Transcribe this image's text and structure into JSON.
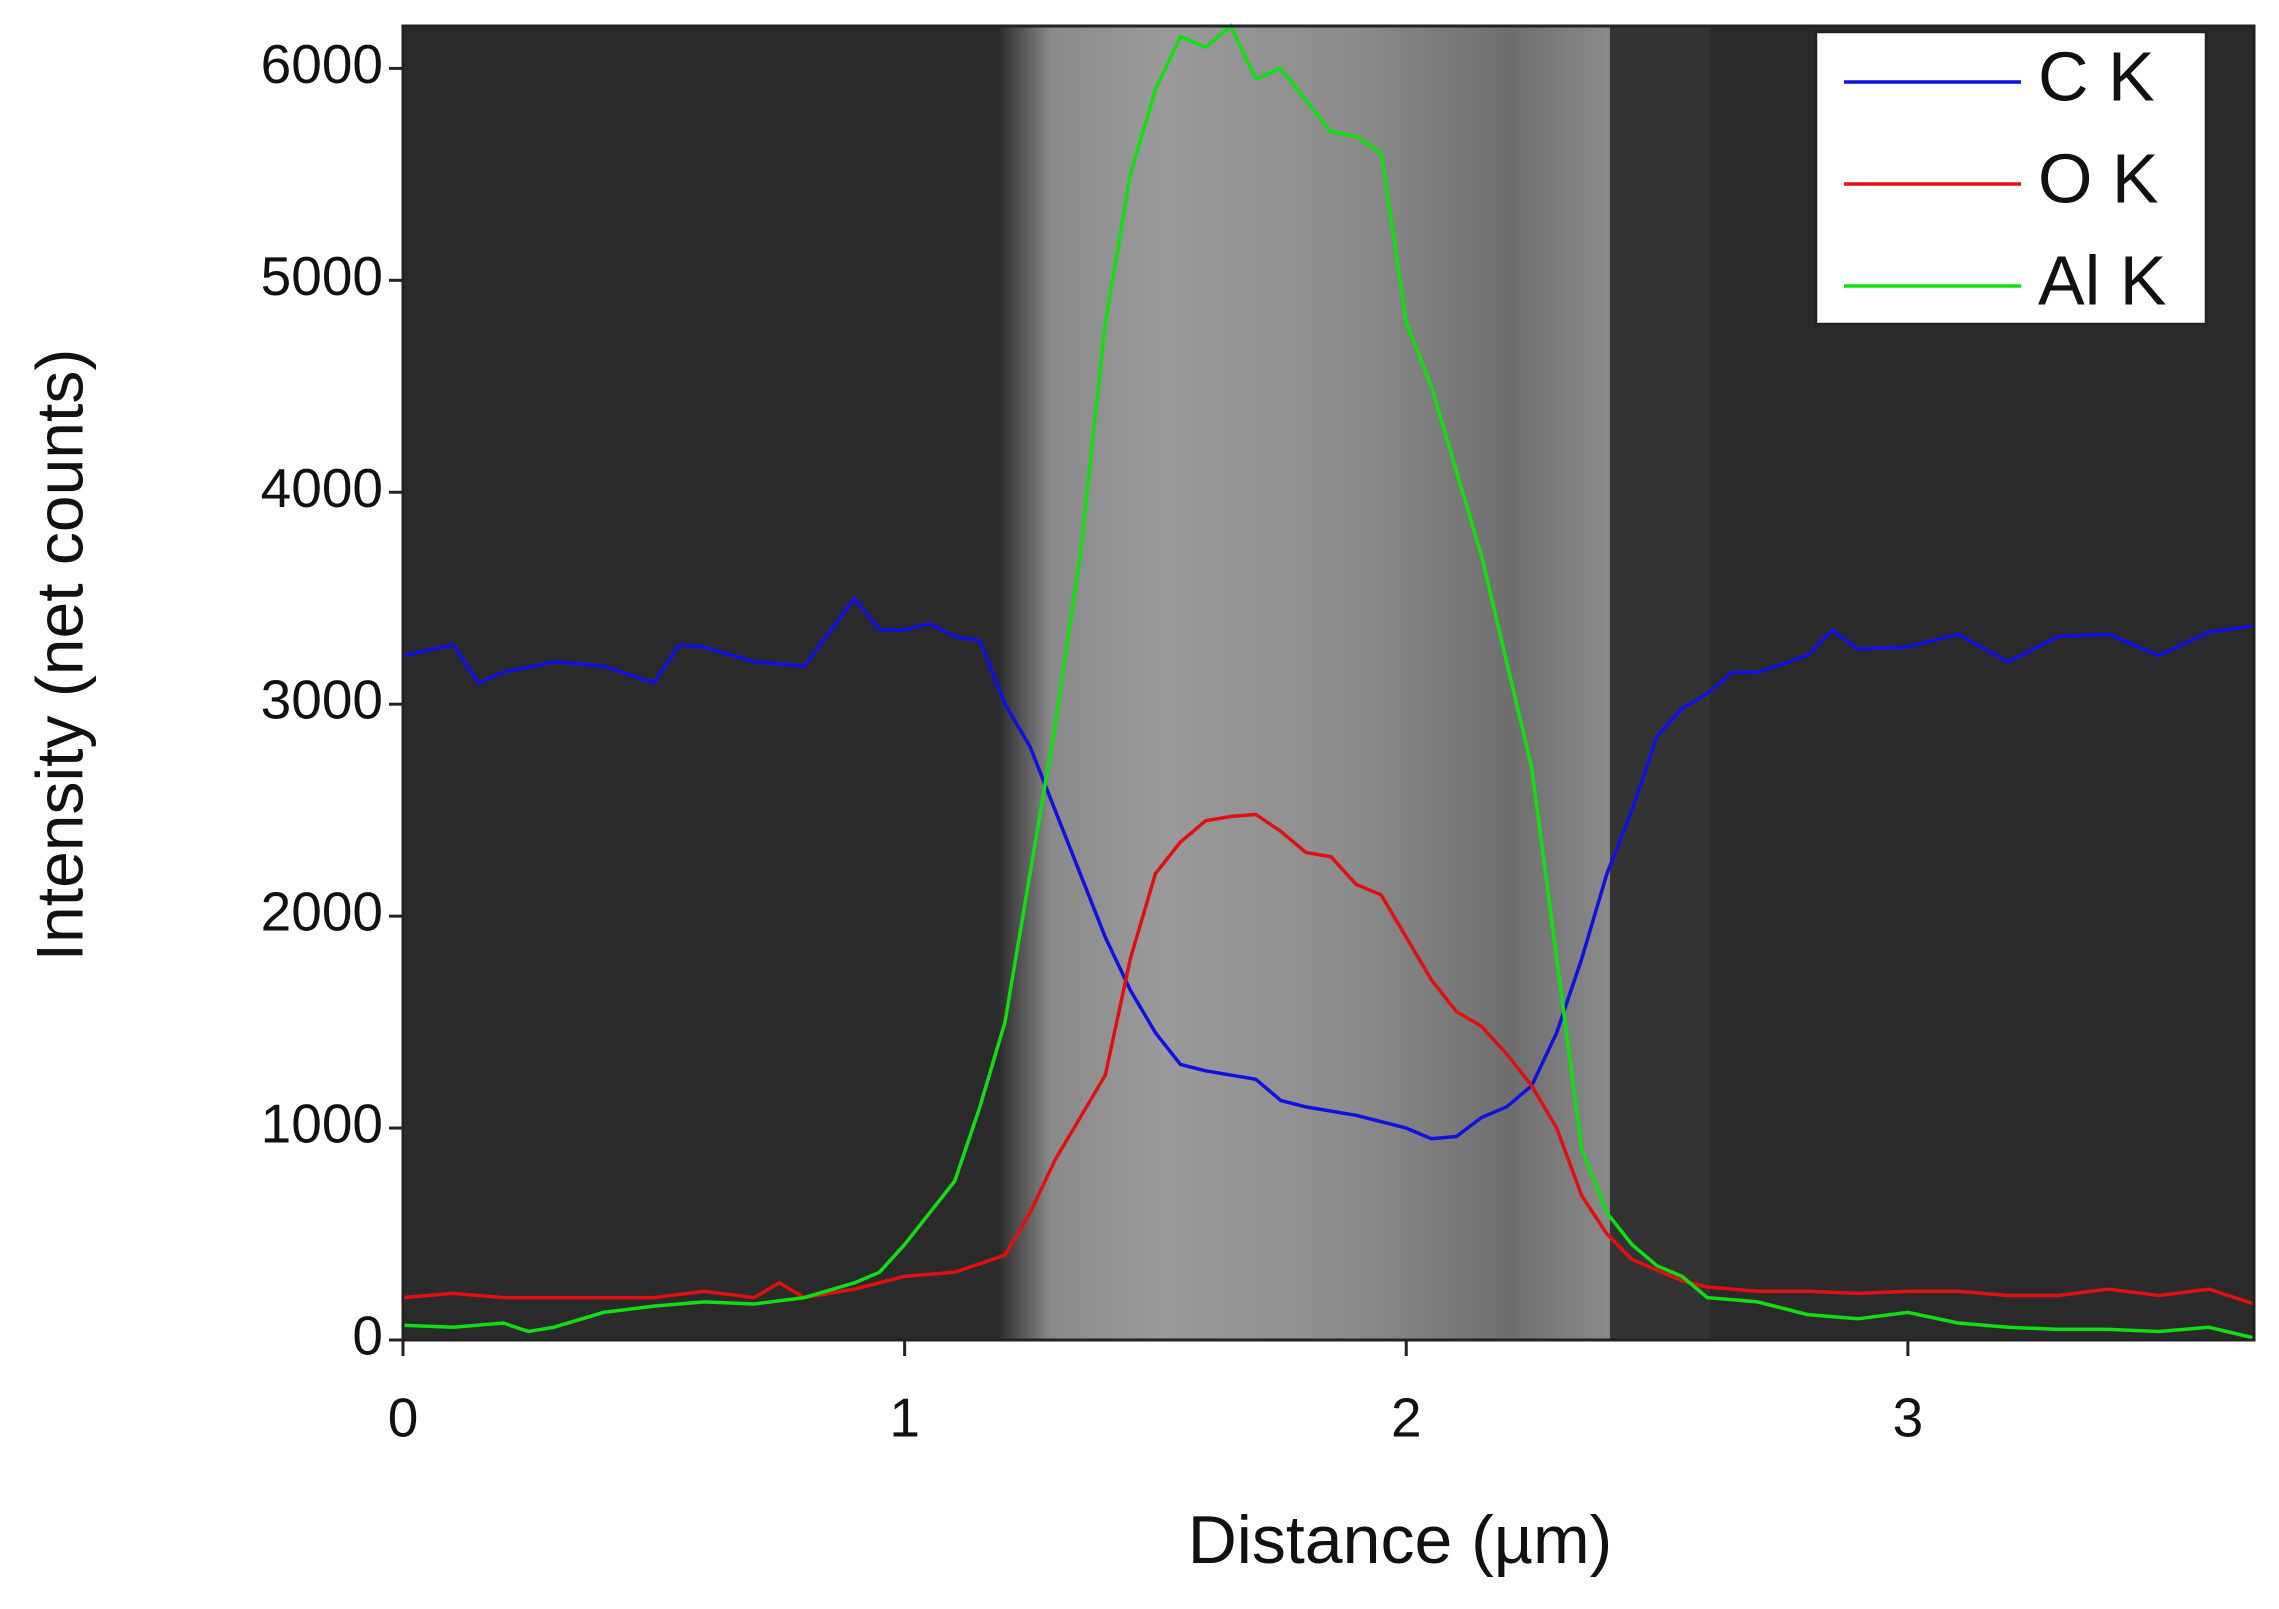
{
  "chart_data": {
    "type": "line",
    "xlabel": "Distance (µm)",
    "ylabel": "Intensity (net counts)",
    "xlim": [
      0,
      3.69
    ],
    "ylim": [
      0,
      6200
    ],
    "xticks": [
      0,
      1,
      2,
      3
    ],
    "yticks": [
      0,
      1000,
      2000,
      3000,
      4000,
      5000,
      6000
    ],
    "legend": "upper right",
    "series": [
      {
        "name": "C K",
        "color": "#1010e0",
        "x": [
          0,
          0.1,
          0.15,
          0.2,
          0.3,
          0.4,
          0.5,
          0.55,
          0.6,
          0.7,
          0.8,
          0.9,
          0.95,
          1.0,
          1.05,
          1.1,
          1.15,
          1.2,
          1.25,
          1.3,
          1.35,
          1.4,
          1.45,
          1.5,
          1.55,
          1.6,
          1.7,
          1.75,
          1.8,
          1.9,
          2.0,
          2.05,
          2.1,
          2.15,
          2.2,
          2.25,
          2.3,
          2.35,
          2.4,
          2.45,
          2.5,
          2.55,
          2.6,
          2.65,
          2.7,
          2.8,
          2.85,
          2.9,
          3.0,
          3.1,
          3.2,
          3.3,
          3.4,
          3.5,
          3.6,
          3.69
        ],
        "values": [
          3230,
          3280,
          3100,
          3150,
          3200,
          3180,
          3100,
          3280,
          3270,
          3200,
          3180,
          3500,
          3350,
          3350,
          3380,
          3320,
          3300,
          3000,
          2800,
          2500,
          2200,
          1900,
          1650,
          1450,
          1300,
          1270,
          1230,
          1130,
          1100,
          1060,
          1000,
          950,
          960,
          1050,
          1100,
          1200,
          1450,
          1800,
          2200,
          2500,
          2850,
          2980,
          3050,
          3150,
          3150,
          3230,
          3350,
          3260,
          3270,
          3330,
          3200,
          3320,
          3330,
          3230,
          3340,
          3370
        ]
      },
      {
        "name": "O K",
        "color": "#e01010",
        "x": [
          0,
          0.1,
          0.2,
          0.3,
          0.4,
          0.5,
          0.6,
          0.7,
          0.75,
          0.8,
          0.9,
          1.0,
          1.1,
          1.2,
          1.25,
          1.3,
          1.35,
          1.4,
          1.45,
          1.5,
          1.55,
          1.6,
          1.65,
          1.7,
          1.75,
          1.8,
          1.85,
          1.9,
          1.95,
          2.0,
          2.05,
          2.1,
          2.15,
          2.2,
          2.25,
          2.3,
          2.35,
          2.4,
          2.45,
          2.5,
          2.55,
          2.6,
          2.7,
          2.8,
          2.9,
          3.0,
          3.1,
          3.2,
          3.3,
          3.4,
          3.5,
          3.6,
          3.69
        ],
        "values": [
          200,
          220,
          200,
          200,
          200,
          200,
          230,
          200,
          270,
          200,
          240,
          300,
          320,
          400,
          600,
          850,
          1050,
          1250,
          1800,
          2200,
          2350,
          2450,
          2470,
          2480,
          2400,
          2300,
          2280,
          2150,
          2100,
          1900,
          1700,
          1550,
          1480,
          1350,
          1200,
          1000,
          680,
          500,
          380,
          330,
          280,
          250,
          230,
          230,
          220,
          230,
          230,
          210,
          210,
          240,
          210,
          240,
          170
        ]
      },
      {
        "name": "Al K",
        "color": "#10e010",
        "x": [
          0,
          0.1,
          0.2,
          0.25,
          0.3,
          0.4,
          0.5,
          0.6,
          0.7,
          0.8,
          0.9,
          0.95,
          1.0,
          1.05,
          1.1,
          1.15,
          1.2,
          1.25,
          1.3,
          1.35,
          1.4,
          1.45,
          1.5,
          1.55,
          1.6,
          1.65,
          1.7,
          1.75,
          1.8,
          1.85,
          1.9,
          1.95,
          2.0,
          2.05,
          2.1,
          2.15,
          2.2,
          2.25,
          2.3,
          2.35,
          2.4,
          2.45,
          2.5,
          2.55,
          2.6,
          2.7,
          2.8,
          2.9,
          3.0,
          3.1,
          3.2,
          3.3,
          3.4,
          3.5,
          3.6,
          3.69
        ],
        "values": [
          70,
          60,
          80,
          40,
          60,
          130,
          160,
          180,
          170,
          200,
          270,
          320,
          450,
          600,
          750,
          1100,
          1500,
          2200,
          2900,
          3700,
          4800,
          5500,
          5900,
          6150,
          6100,
          6200,
          5950,
          6000,
          5850,
          5700,
          5680,
          5600,
          4800,
          4500,
          4100,
          3700,
          3200,
          2700,
          1800,
          900,
          600,
          450,
          350,
          300,
          200,
          180,
          120,
          100,
          130,
          80,
          60,
          50,
          50,
          40,
          60,
          10
        ]
      }
    ]
  }
}
